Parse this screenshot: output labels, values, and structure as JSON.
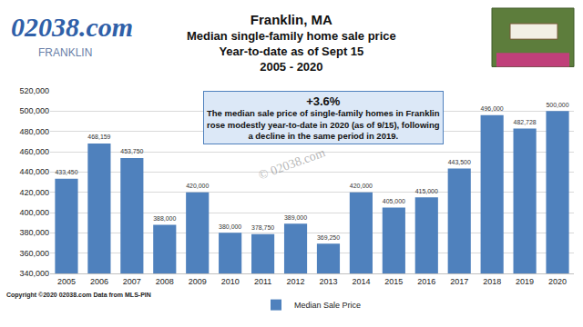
{
  "chart_data": {
    "type": "bar",
    "title": "Franklin, MA",
    "subtitle": [
      "Median single-family home sale price",
      "Year-to-date as of Sept 15",
      "2005 - 2020"
    ],
    "categories": [
      "2005",
      "2006",
      "2007",
      "2008",
      "2009",
      "2010",
      "2011",
      "2012",
      "2013",
      "2014",
      "2015",
      "2016",
      "2017",
      "2018",
      "2019",
      "2020"
    ],
    "series": [
      {
        "name": "Median Sale Price",
        "color": "#4f81bd",
        "values": [
          433450,
          468159,
          453750,
          388000,
          420000,
          380000,
          378750,
          389000,
          369250,
          420000,
          405000,
          415000,
          443500,
          496000,
          482728,
          500000
        ],
        "value_labels": [
          "433,450",
          "468,159",
          "453,750",
          "388,000",
          "420,000",
          "380,000",
          "378,750",
          "389,000",
          "369,250",
          "420,000",
          "405,000",
          "415,000",
          "443,500",
          "496,000",
          "482,728",
          "500,000"
        ]
      }
    ],
    "data_labels": true,
    "ylim": [
      340000,
      520000
    ],
    "yticks": [
      {
        "value": 340000,
        "label": "340,000"
      },
      {
        "value": 360000,
        "label": "360,000"
      },
      {
        "value": 380000,
        "label": "380,000"
      },
      {
        "value": 400000,
        "label": "400,000"
      },
      {
        "value": 420000,
        "label": "420,000"
      },
      {
        "value": 440000,
        "label": "440,000"
      },
      {
        "value": 460000,
        "label": "460,000"
      },
      {
        "value": 480000,
        "label": "480,000"
      },
      {
        "value": 500000,
        "label": "500,000"
      },
      {
        "value": 520000,
        "label": "520,000"
      }
    ],
    "grid": true,
    "legend": "bottom",
    "annotations": {
      "logo": "02038.com",
      "logo_sub": "FRANKLIN",
      "callout_title": "+3.6%",
      "callout_lines": [
        "The median sale price of single-family homes in Franklin",
        "rose modestly year-to-date in 2020 (as of 9/15), following",
        "a decline in the same period in 2019."
      ],
      "watermark": "© 02038.com",
      "copyright": "Copyright ©2020 02038.com Data from MLS-PIN"
    }
  }
}
